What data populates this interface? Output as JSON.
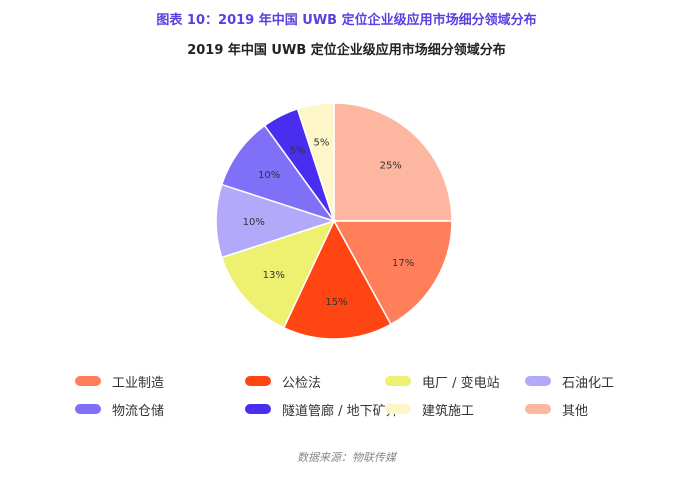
{
  "caption": "图表 10：2019 年中国 UWB 定位企业级应用市场细分领域分布",
  "source": "数据来源：物联传媒",
  "chart_data": {
    "type": "pie",
    "title": "2019 年中国 UWB 定位企业级应用市场细分领域分布",
    "categories": [
      "工业制造",
      "公检法",
      "电厂 / 变电站",
      "石油化工",
      "物流仓储",
      "隧道管廊 / 地下矿井",
      "建筑施工",
      "其他"
    ],
    "values": [
      17,
      15,
      13,
      10,
      10,
      5,
      5,
      25
    ],
    "labels": [
      "17%",
      "15%",
      "13%",
      "10%",
      "10%",
      "5%",
      "5%",
      "25%"
    ],
    "colors": [
      "#ff7f5b",
      "#ff4512",
      "#eef070",
      "#b3a9fb",
      "#7f70f7",
      "#4a2ef0",
      "#fdf6c8",
      "#fdb6a0"
    ],
    "start": "top, clockwise from 其他",
    "legend_position": "bottom"
  }
}
